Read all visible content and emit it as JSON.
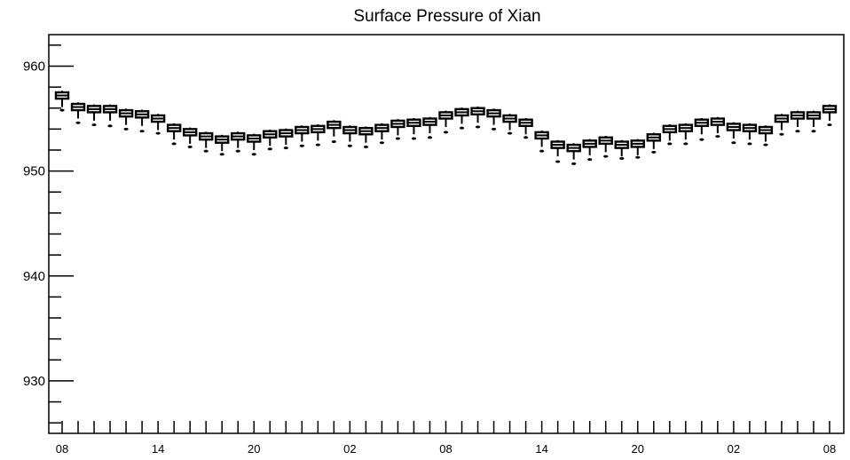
{
  "chart_data": {
    "type": "box",
    "title": "Surface Pressure of Xian",
    "xlabel": "",
    "ylabel": "",
    "ylim": [
      925,
      963
    ],
    "y_ticks": [
      930,
      940,
      950,
      960
    ],
    "x_tick_labels": [
      "08",
      "14",
      "20",
      "02",
      "08",
      "14",
      "20",
      "02",
      "08"
    ],
    "x_label_positions": [
      0,
      6,
      12,
      18,
      24,
      30,
      36,
      42,
      48
    ],
    "x_tick_count": 49,
    "grid": false,
    "medians": [
      957.2,
      956.1,
      955.9,
      955.9,
      955.5,
      955.4,
      955.0,
      954.1,
      953.7,
      953.3,
      953.0,
      953.3,
      953.1,
      953.5,
      953.6,
      953.9,
      954.0,
      954.4,
      953.9,
      953.8,
      954.1,
      954.5,
      954.6,
      954.7,
      955.3,
      955.6,
      955.7,
      955.5,
      955.0,
      954.6,
      953.4,
      952.5,
      952.2,
      952.6,
      952.9,
      952.5,
      952.6,
      953.2,
      954.0,
      954.1,
      954.6,
      954.7,
      954.2,
      954.1,
      953.9,
      955.0,
      955.3,
      955.3,
      955.9
    ],
    "outliers_low": [
      955.8,
      954.6,
      954.4,
      954.3,
      954.0,
      953.8,
      953.6,
      952.6,
      952.3,
      951.9,
      951.6,
      951.9,
      951.6,
      952.1,
      952.2,
      952.4,
      952.5,
      952.8,
      952.4,
      952.3,
      952.7,
      953.1,
      953.1,
      953.2,
      953.7,
      954.1,
      954.2,
      954.0,
      953.6,
      953.2,
      951.9,
      950.9,
      950.7,
      951.1,
      951.4,
      951.2,
      951.3,
      951.8,
      952.6,
      952.6,
      953.0,
      953.3,
      952.7,
      952.6,
      952.5,
      953.5,
      953.8,
      953.8,
      954.4
    ]
  }
}
